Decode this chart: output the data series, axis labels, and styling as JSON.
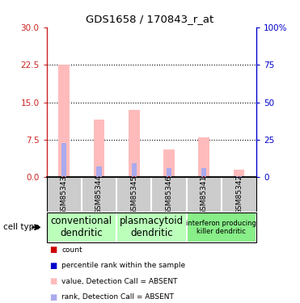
{
  "title": "GDS1658 / 170843_r_at",
  "samples": [
    "GSM85343",
    "GSM85344",
    "GSM85345",
    "GSM85346",
    "GSM85341",
    "GSM85342"
  ],
  "pink_values": [
    22.5,
    11.5,
    13.5,
    5.5,
    8.0,
    1.5
  ],
  "blue_values": [
    6.8,
    2.2,
    2.8,
    1.8,
    1.8,
    0.3
  ],
  "red_values": [
    0.18,
    0.18,
    0.18,
    0.18,
    0.18,
    0.18
  ],
  "left_yticks": [
    0,
    7.5,
    15,
    22.5,
    30
  ],
  "right_yticks": [
    0,
    25,
    50,
    75,
    100
  ],
  "right_yticklabels": [
    "0",
    "25",
    "50",
    "75",
    "100%"
  ],
  "ylim": [
    0,
    30
  ],
  "left_tick_color": "#cc2222",
  "right_tick_color": "#0000cc",
  "bar_width": 0.32,
  "pink_color": "#ffbbbb",
  "blue_color": "#aaaaee",
  "red_color": "#cc0000",
  "bg_color": "#ffffff",
  "plot_bg_color": "#ffffff",
  "sample_area_color": "#cccccc",
  "grid_color": "#333333",
  "cell_type_groups": [
    {
      "label": "conventional\ndendritic",
      "start": 0,
      "end": 2,
      "color": "#bbffbb",
      "fontsize": 8.5
    },
    {
      "label": "plasmacytoid\ndendritic",
      "start": 2,
      "end": 4,
      "color": "#bbffbb",
      "fontsize": 8.5
    },
    {
      "label": "interferon producing\nkiller dendritic",
      "start": 4,
      "end": 6,
      "color": "#88ee88",
      "fontsize": 6.0
    }
  ],
  "legend_items": [
    {
      "color": "#cc0000",
      "label": "count"
    },
    {
      "color": "#0000cc",
      "label": "percentile rank within the sample"
    },
    {
      "color": "#ffbbbb",
      "label": "value, Detection Call = ABSENT"
    },
    {
      "color": "#aaaaee",
      "label": "rank, Detection Call = ABSENT"
    }
  ],
  "cell_type_label": "cell type"
}
